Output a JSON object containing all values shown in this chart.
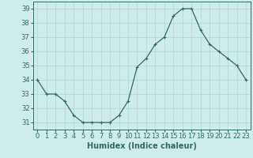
{
  "x": [
    0,
    1,
    2,
    3,
    4,
    5,
    6,
    7,
    8,
    9,
    10,
    11,
    12,
    13,
    14,
    15,
    16,
    17,
    18,
    19,
    20,
    21,
    22,
    23
  ],
  "y": [
    34,
    33,
    33,
    32.5,
    31.5,
    31,
    31,
    31,
    31,
    31.5,
    32.5,
    34.9,
    35.5,
    36.5,
    37,
    38.5,
    39,
    39,
    37.5,
    36.5,
    36,
    35.5,
    35,
    34
  ],
  "line_color": "#2e6b62",
  "marker": "+",
  "marker_size": 3,
  "marker_lw": 0.8,
  "line_width": 0.9,
  "bg_color": "#cdecea",
  "grid_color": "#aed6d3",
  "xlabel": "Humidex (Indice chaleur)",
  "xlim": [
    -0.5,
    23.5
  ],
  "ylim": [
    30.5,
    39.5
  ],
  "yticks": [
    31,
    32,
    33,
    34,
    35,
    36,
    37,
    38,
    39
  ],
  "xticks": [
    0,
    1,
    2,
    3,
    4,
    5,
    6,
    7,
    8,
    9,
    10,
    11,
    12,
    13,
    14,
    15,
    16,
    17,
    18,
    19,
    20,
    21,
    22,
    23
  ],
  "tick_color": "#2e6b62",
  "label_fontsize": 7,
  "tick_fontsize": 6
}
